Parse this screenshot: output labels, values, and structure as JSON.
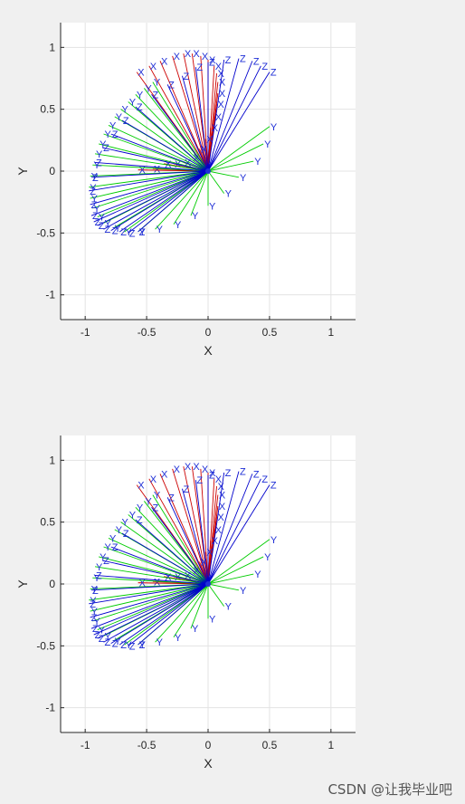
{
  "watermark": "CSDN @让我毕业吧",
  "chart_data": [
    {
      "type": "line",
      "title": "",
      "xlabel": "X",
      "ylabel": "Y",
      "xlim": [
        -1.2,
        1.2
      ],
      "ylim": [
        -1.2,
        1.2
      ],
      "xticks": [
        -1,
        -0.5,
        0,
        0.5,
        1
      ],
      "yticks": [
        -1,
        -0.5,
        0,
        0.5,
        1
      ],
      "xtick_labels": [
        "-1",
        "-0.5",
        "0",
        "0.5",
        "1"
      ],
      "ytick_labels": [
        "-1",
        "-0.5",
        "0",
        "0.5",
        "1"
      ],
      "grid": true,
      "series": [
        {
          "label_text": "X",
          "color": "#cc0000",
          "x": [
            -0.58,
            -0.48,
            -0.39,
            -0.29,
            -0.2,
            -0.13,
            -0.06,
            0.0,
            0.05,
            0.07,
            0.08,
            0.08,
            0.07,
            0.05,
            0.02,
            -0.02,
            -0.07,
            -0.13,
            -0.2,
            -0.28,
            -0.36,
            -0.45,
            -0.57
          ],
          "y": [
            0.8,
            0.85,
            0.89,
            0.93,
            0.95,
            0.95,
            0.93,
            0.9,
            0.85,
            0.79,
            0.72,
            0.63,
            0.54,
            0.44,
            0.35,
            0.26,
            0.18,
            0.11,
            0.07,
            0.06,
            0.06,
            0.02,
            0.01
          ]
        },
        {
          "label_text": "Y",
          "color": "#00cc00",
          "x": [
            0.5,
            0.45,
            0.37,
            0.25,
            0.13,
            0.0,
            -0.14,
            -0.28,
            -0.43,
            -0.57,
            -0.68,
            -0.77,
            -0.85,
            -0.9,
            -0.94,
            -0.96,
            -0.97,
            -0.96,
            -0.94,
            -0.92,
            -0.89,
            -0.85,
            -0.81,
            -0.76,
            -0.71,
            -0.65,
            -0.59,
            -0.52,
            -0.45
          ],
          "y": [
            0.36,
            0.22,
            0.08,
            -0.05,
            -0.18,
            -0.28,
            -0.36,
            -0.43,
            -0.47,
            -0.49,
            -0.49,
            -0.46,
            -0.42,
            -0.37,
            -0.3,
            -0.22,
            -0.13,
            -0.04,
            0.05,
            0.14,
            0.22,
            0.3,
            0.37,
            0.44,
            0.5,
            0.56,
            0.62,
            0.67,
            0.72
          ]
        },
        {
          "label_text": "Z",
          "color": "#0000cc",
          "x": [
            0.5,
            0.43,
            0.36,
            0.25,
            0.13,
            0.0,
            -0.1,
            -0.21,
            -0.33,
            -0.46,
            -0.59,
            -0.7,
            -0.79,
            -0.86,
            -0.92,
            -0.95,
            -0.97,
            -0.96,
            -0.95,
            -0.93,
            -0.9,
            -0.85,
            -0.79,
            -0.72,
            -0.65,
            -0.57
          ],
          "y": [
            0.8,
            0.85,
            0.89,
            0.91,
            0.9,
            0.88,
            0.84,
            0.77,
            0.7,
            0.62,
            0.52,
            0.41,
            0.3,
            0.19,
            0.07,
            -0.05,
            -0.16,
            -0.27,
            -0.36,
            -0.41,
            -0.44,
            -0.47,
            -0.48,
            -0.49,
            -0.5,
            -0.49
          ]
        }
      ]
    },
    {
      "type": "line",
      "title": "",
      "xlabel": "X",
      "ylabel": "Y",
      "xlim": [
        -1.2,
        1.2
      ],
      "ylim": [
        -1.2,
        1.2
      ],
      "xticks": [
        -1,
        -0.5,
        0,
        0.5,
        1
      ],
      "yticks": [
        -1,
        -0.5,
        0,
        0.5,
        1
      ],
      "xtick_labels": [
        "-1",
        "-0.5",
        "0",
        "0.5",
        "1"
      ],
      "ytick_labels": [
        "-1",
        "-0.5",
        "0",
        "0.5",
        "1"
      ],
      "grid": true,
      "series": [
        {
          "label_text": "X",
          "color": "#cc0000",
          "x": [
            -0.58,
            -0.48,
            -0.39,
            -0.29,
            -0.2,
            -0.13,
            -0.06,
            0.0,
            0.05,
            0.07,
            0.08,
            0.08,
            0.07,
            0.05,
            0.02,
            -0.02,
            -0.07,
            -0.13,
            -0.2,
            -0.28,
            -0.36,
            -0.45,
            -0.57
          ],
          "y": [
            0.8,
            0.85,
            0.89,
            0.93,
            0.95,
            0.95,
            0.93,
            0.9,
            0.85,
            0.79,
            0.72,
            0.63,
            0.54,
            0.44,
            0.35,
            0.26,
            0.18,
            0.11,
            0.07,
            0.06,
            0.06,
            0.02,
            0.01
          ]
        },
        {
          "label_text": "Y",
          "color": "#00cc00",
          "x": [
            0.5,
            0.45,
            0.37,
            0.25,
            0.13,
            0.0,
            -0.14,
            -0.28,
            -0.43,
            -0.57,
            -0.68,
            -0.77,
            -0.85,
            -0.9,
            -0.94,
            -0.96,
            -0.97,
            -0.96,
            -0.94,
            -0.92,
            -0.89,
            -0.85,
            -0.81,
            -0.76,
            -0.71,
            -0.65,
            -0.59,
            -0.52,
            -0.45
          ],
          "y": [
            0.36,
            0.22,
            0.08,
            -0.05,
            -0.18,
            -0.28,
            -0.36,
            -0.43,
            -0.47,
            -0.49,
            -0.49,
            -0.46,
            -0.42,
            -0.37,
            -0.3,
            -0.22,
            -0.13,
            -0.04,
            0.05,
            0.14,
            0.22,
            0.3,
            0.37,
            0.44,
            0.5,
            0.56,
            0.62,
            0.67,
            0.72
          ]
        },
        {
          "label_text": "Z",
          "color": "#0000cc",
          "x": [
            0.5,
            0.43,
            0.36,
            0.25,
            0.13,
            0.0,
            -0.1,
            -0.21,
            -0.33,
            -0.46,
            -0.59,
            -0.7,
            -0.79,
            -0.86,
            -0.92,
            -0.95,
            -0.97,
            -0.96,
            -0.95,
            -0.93,
            -0.9,
            -0.85,
            -0.79,
            -0.72,
            -0.65,
            -0.57
          ],
          "y": [
            0.8,
            0.85,
            0.89,
            0.91,
            0.9,
            0.88,
            0.84,
            0.77,
            0.7,
            0.62,
            0.52,
            0.41,
            0.3,
            0.19,
            0.07,
            -0.05,
            -0.16,
            -0.27,
            -0.36,
            -0.41,
            -0.44,
            -0.47,
            -0.48,
            -0.49,
            -0.5,
            -0.49
          ]
        }
      ]
    }
  ]
}
